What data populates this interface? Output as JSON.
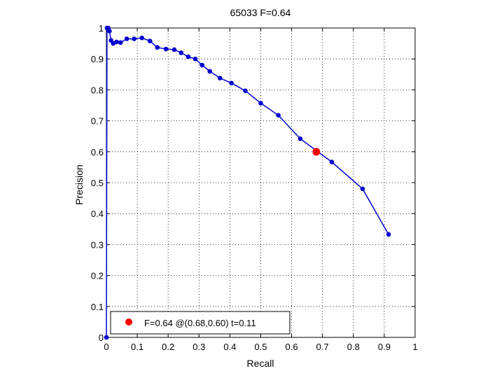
{
  "chart_data": {
    "type": "line",
    "title": "65033 F=0.64",
    "xlabel": "Recall",
    "ylabel": "Precision",
    "xlim": [
      0,
      1
    ],
    "ylim": [
      0,
      1
    ],
    "xticks": [
      "0",
      "0.1",
      "0.2",
      "0.3",
      "0.4",
      "0.5",
      "0.6",
      "0.7",
      "0.8",
      "0.9",
      "1"
    ],
    "yticks": [
      "0",
      "0.1",
      "0.2",
      "0.3",
      "0.4",
      "0.5",
      "0.6",
      "0.7",
      "0.8",
      "0.9",
      "1"
    ],
    "grid": true,
    "legend_position": "bottom-left",
    "series": [
      {
        "color": "#0000d0",
        "points": [
          [
            0.0,
            0.0
          ],
          [
            0.002,
            1.0
          ],
          [
            0.006,
            1.0
          ],
          [
            0.01,
            0.99
          ],
          [
            0.015,
            0.96
          ],
          [
            0.022,
            0.95
          ],
          [
            0.033,
            0.955
          ],
          [
            0.046,
            0.953
          ],
          [
            0.066,
            0.965
          ],
          [
            0.09,
            0.965
          ],
          [
            0.115,
            0.968
          ],
          [
            0.141,
            0.958
          ],
          [
            0.165,
            0.937
          ],
          [
            0.193,
            0.932
          ],
          [
            0.22,
            0.93
          ],
          [
            0.242,
            0.92
          ],
          [
            0.265,
            0.907
          ],
          [
            0.288,
            0.9
          ],
          [
            0.31,
            0.88
          ],
          [
            0.335,
            0.86
          ],
          [
            0.368,
            0.838
          ],
          [
            0.405,
            0.822
          ],
          [
            0.45,
            0.797
          ],
          [
            0.5,
            0.757
          ],
          [
            0.557,
            0.718
          ],
          [
            0.628,
            0.642
          ],
          [
            0.73,
            0.567
          ],
          [
            0.83,
            0.48
          ],
          [
            0.914,
            0.333
          ]
        ]
      }
    ],
    "best_point": {
      "x": 0.68,
      "y": 0.6,
      "color": "#ff0000"
    },
    "legend": {
      "text": "F=0.64 @(0.68,0.60) t=0.11",
      "color": "#ff0000"
    }
  }
}
